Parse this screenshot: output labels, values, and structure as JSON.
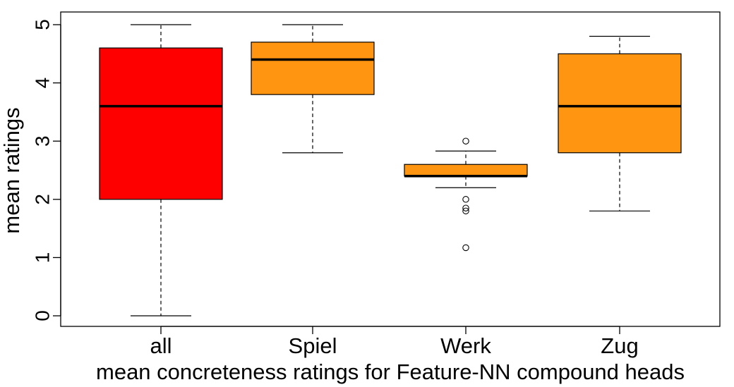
{
  "chart_data": {
    "type": "boxplot",
    "title": "",
    "xlabel": "mean concreteness ratings for Feature-NN compound heads",
    "ylabel": "mean ratings",
    "ylim": [
      -0.2,
      5.2
    ],
    "yticks": [
      0,
      1,
      2,
      3,
      4,
      5
    ],
    "categories": [
      "all",
      "Spiel",
      "Werk",
      "Zug"
    ],
    "boxes": [
      {
        "label": "all",
        "whisker_low": 0.0,
        "q1": 2.0,
        "median": 3.6,
        "q3": 4.6,
        "whisker_high": 5.0,
        "outliers": [],
        "color": "#ff0000"
      },
      {
        "label": "Spiel",
        "whisker_low": 2.8,
        "q1": 3.8,
        "median": 4.4,
        "q3": 4.7,
        "whisker_high": 5.0,
        "outliers": [],
        "color": "#ff9510"
      },
      {
        "label": "Werk",
        "whisker_low": 2.2,
        "q1": 2.4,
        "median": 2.4,
        "q3": 2.6,
        "whisker_high": 2.83,
        "outliers": [
          3.0,
          2.0,
          1.85,
          1.8,
          1.17
        ],
        "color": "#ff9510"
      },
      {
        "label": "Zug",
        "whisker_low": 1.8,
        "q1": 2.8,
        "median": 3.6,
        "q3": 4.5,
        "whisker_high": 4.8,
        "outliers": [],
        "color": "#ff9510"
      }
    ],
    "grid": false,
    "legend": "none"
  }
}
